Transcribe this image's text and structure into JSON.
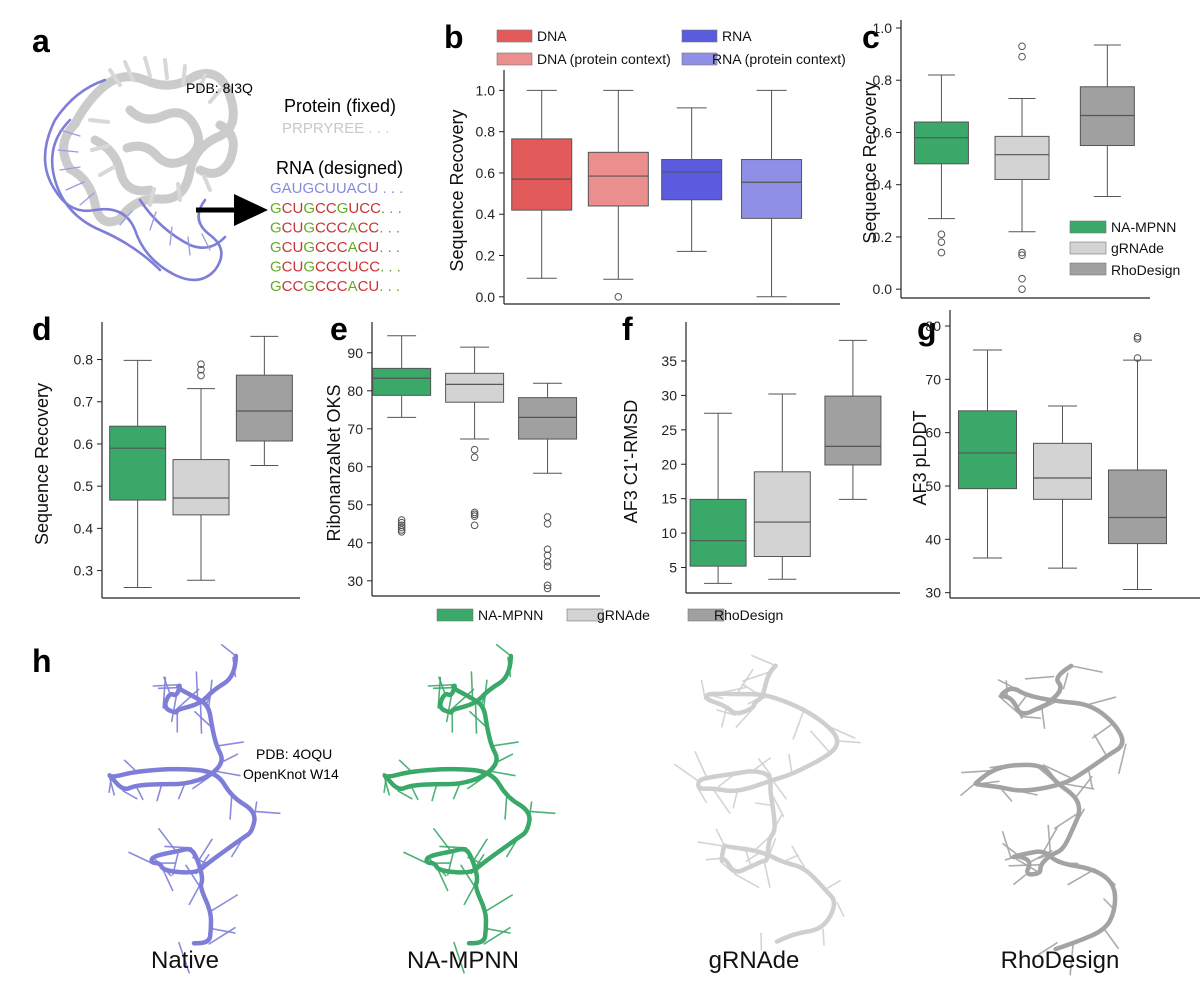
{
  "colors": {
    "dna": "#e35a5a",
    "dna_pc": "#ea8e8e",
    "rna": "#5b5be0",
    "rna_pc": "#8f8fe6",
    "na_mpnn": "#3aa869",
    "grnade": "#d3d3d3",
    "rhodesign": "#a0a0a0",
    "native": "#7e7ed9",
    "protein_grey": "#cccccc",
    "seq_red": "#cc3333",
    "seq_green": "#66aa22",
    "seq_blue": "#8888dd"
  },
  "panel_a": {
    "letter": "a",
    "pdb": "PDB: 8I3Q",
    "protein_label": "Protein (fixed)",
    "protein_seq": "PRPRYREE . . .",
    "rna_label": "RNA (designed)",
    "rna_native_seq": "GAUGCUUACU . . .",
    "designed_seqs": [
      "GCUGCCGUCC",
      "GCUGCCCACC",
      "GCUGCCCACU",
      "GCUGCCCUCC",
      "GCCGCCCACU"
    ],
    "designed_suffix": ". . .",
    "protein_icon": "protein-structure-icon",
    "arrow_icon": "right-arrow-icon"
  },
  "panel_h": {
    "letter": "h",
    "pdb_line1": "PDB: 4OQU",
    "pdb_line2": "OpenKnot W14",
    "labels": [
      "Native",
      "NA-MPNN",
      "gRNAde",
      "RhoDesign"
    ],
    "structure_icon": "rna-3d-structure-icon"
  },
  "shared_legend": [
    "NA-MPNN",
    "gRNAde",
    "RhoDesign"
  ],
  "chart_data": [
    {
      "panel": "b",
      "type": "box",
      "title": "",
      "xlabel": "",
      "ylabel": "Sequence Recovery",
      "ylim": [
        -0.03,
        1.06
      ],
      "yticks": [
        0.0,
        0.2,
        0.4,
        0.6,
        0.8,
        1.0
      ],
      "ytick_labels": [
        "0.0",
        "0.2",
        "0.4",
        "0.6",
        "0.8",
        "1.0"
      ],
      "legend": {
        "placement": "top",
        "entries": [
          "DNA",
          "RNA",
          "DNA (protein context)",
          "RNA (protein context)"
        ]
      },
      "series": [
        {
          "name": "DNA",
          "color_key": "dna",
          "whislo": 0.09,
          "q1": 0.42,
          "med": 0.57,
          "q3": 0.765,
          "whishi": 1.0,
          "outliers": []
        },
        {
          "name": "DNA (protein context)",
          "color_key": "dna_pc",
          "whislo": 0.085,
          "q1": 0.44,
          "med": 0.585,
          "q3": 0.7,
          "whishi": 1.0,
          "outliers": [
            0.0
          ]
        },
        {
          "name": "RNA",
          "color_key": "rna",
          "whislo": 0.22,
          "q1": 0.47,
          "med": 0.605,
          "q3": 0.665,
          "whishi": 0.915,
          "outliers": []
        },
        {
          "name": "RNA (protein context)",
          "color_key": "rna_pc",
          "whislo": 0.0,
          "q1": 0.38,
          "med": 0.555,
          "q3": 0.665,
          "whishi": 1.0,
          "outliers": []
        }
      ]
    },
    {
      "panel": "c",
      "type": "box",
      "title": "",
      "xlabel": "",
      "ylabel": "Sequence Recovery",
      "ylim": [
        -0.03,
        1.0
      ],
      "yticks": [
        0.0,
        0.2,
        0.4,
        0.6,
        0.8,
        1.0
      ],
      "ytick_labels": [
        "0.0",
        "0.2",
        "0.4",
        "0.6",
        "0.8",
        "1.0"
      ],
      "legend": {
        "placement": "bottom-right",
        "entries": [
          "NA-MPNN",
          "gRNAde",
          "RhoDesign"
        ]
      },
      "series": [
        {
          "name": "NA-MPNN",
          "color_key": "na_mpnn",
          "whislo": 0.27,
          "q1": 0.48,
          "med": 0.58,
          "q3": 0.64,
          "whishi": 0.82,
          "outliers": [
            0.21,
            0.18,
            0.14
          ]
        },
        {
          "name": "gRNAde",
          "color_key": "grnade",
          "whislo": 0.22,
          "q1": 0.42,
          "med": 0.515,
          "q3": 0.585,
          "whishi": 0.73,
          "outliers": [
            0.93,
            0.89,
            0.14,
            0.13,
            0.04,
            0.0
          ]
        },
        {
          "name": "RhoDesign",
          "color_key": "rhodesign",
          "whislo": 0.355,
          "q1": 0.55,
          "med": 0.665,
          "q3": 0.775,
          "whishi": 0.935,
          "outliers": []
        }
      ]
    },
    {
      "panel": "d",
      "type": "box",
      "title": "",
      "xlabel": "",
      "ylabel": "Sequence Recovery",
      "ylim": [
        0.235,
        0.87
      ],
      "yticks": [
        0.3,
        0.4,
        0.5,
        0.6,
        0.7,
        0.8
      ],
      "ytick_labels": [
        "0.3",
        "0.4",
        "0.5",
        "0.6",
        "0.7",
        "0.8"
      ],
      "series": [
        {
          "name": "NA-MPNN",
          "color_key": "na_mpnn",
          "whislo": 0.26,
          "q1": 0.467,
          "med": 0.59,
          "q3": 0.642,
          "whishi": 0.798,
          "outliers": []
        },
        {
          "name": "gRNAde",
          "color_key": "grnade",
          "whislo": 0.277,
          "q1": 0.432,
          "med": 0.472,
          "q3": 0.563,
          "whishi": 0.731,
          "outliers": [
            0.789,
            0.776,
            0.762
          ]
        },
        {
          "name": "RhoDesign",
          "color_key": "rhodesign",
          "whislo": 0.549,
          "q1": 0.607,
          "med": 0.678,
          "q3": 0.763,
          "whishi": 0.855,
          "outliers": []
        }
      ]
    },
    {
      "panel": "e",
      "type": "box",
      "title": "",
      "xlabel": "",
      "ylabel": "RibonanzaNet OKS",
      "ylim": [
        26,
        96
      ],
      "yticks": [
        30,
        40,
        50,
        60,
        70,
        80,
        90
      ],
      "ytick_labels": [
        "30",
        "40",
        "50",
        "60",
        "70",
        "80",
        "90"
      ],
      "series": [
        {
          "name": "NA-MPNN",
          "color_key": "na_mpnn",
          "whislo": 73.0,
          "q1": 78.8,
          "med": 83.3,
          "q3": 85.9,
          "whishi": 94.5,
          "outliers": [
            46.0,
            45.3,
            44.6,
            44.0,
            43.4,
            42.9
          ]
        },
        {
          "name": "gRNAde",
          "color_key": "grnade",
          "whislo": 67.3,
          "q1": 77.0,
          "med": 81.7,
          "q3": 84.6,
          "whishi": 91.5,
          "outliers": [
            64.5,
            62.5,
            48.0,
            47.5,
            47.0,
            44.6
          ]
        },
        {
          "name": "RhoDesign",
          "color_key": "rhodesign",
          "whislo": 58.3,
          "q1": 67.3,
          "med": 73.0,
          "q3": 78.2,
          "whishi": 82.0,
          "outliers": [
            46.8,
            45.0,
            38.3,
            36.7,
            35.0,
            33.8,
            28.8,
            28.0
          ]
        }
      ]
    },
    {
      "panel": "f",
      "type": "box",
      "title": "",
      "xlabel": "",
      "ylabel": "AF3 C1'-RMSD",
      "ylim": [
        1.3,
        39.5
      ],
      "yticks": [
        5,
        10,
        15,
        20,
        25,
        30,
        35
      ],
      "ytick_labels": [
        "5",
        "10",
        "15",
        "20",
        "25",
        "30",
        "35"
      ],
      "series": [
        {
          "name": "NA-MPNN",
          "color_key": "na_mpnn",
          "whislo": 2.7,
          "q1": 5.2,
          "med": 8.9,
          "q3": 14.9,
          "whishi": 27.4,
          "outliers": []
        },
        {
          "name": "gRNAde",
          "color_key": "grnade",
          "whislo": 3.3,
          "q1": 6.6,
          "med": 11.6,
          "q3": 18.9,
          "whishi": 30.2,
          "outliers": []
        },
        {
          "name": "RhoDesign",
          "color_key": "rhodesign",
          "whislo": 14.9,
          "q1": 19.9,
          "med": 22.6,
          "q3": 29.9,
          "whishi": 38.0,
          "outliers": []
        }
      ]
    },
    {
      "panel": "g",
      "type": "box",
      "title": "",
      "xlabel": "",
      "ylabel": "AF3 pLDDT",
      "ylim": [
        29,
        81.5
      ],
      "yticks": [
        30,
        40,
        50,
        60,
        70,
        80
      ],
      "ytick_labels": [
        "30",
        "40",
        "50",
        "60",
        "70",
        "80"
      ],
      "series": [
        {
          "name": "NA-MPNN",
          "color_key": "na_mpnn",
          "whislo": 36.5,
          "q1": 49.5,
          "med": 56.2,
          "q3": 64.1,
          "whishi": 75.5,
          "outliers": []
        },
        {
          "name": "gRNAde",
          "color_key": "grnade",
          "whislo": 34.6,
          "q1": 47.5,
          "med": 51.5,
          "q3": 58.0,
          "whishi": 65.0,
          "outliers": []
        },
        {
          "name": "RhoDesign",
          "color_key": "rhodesign",
          "whislo": 30.6,
          "q1": 39.2,
          "med": 44.1,
          "q3": 53.0,
          "whishi": 73.6,
          "outliers": [
            78.0,
            77.6,
            74.0
          ]
        }
      ]
    }
  ]
}
